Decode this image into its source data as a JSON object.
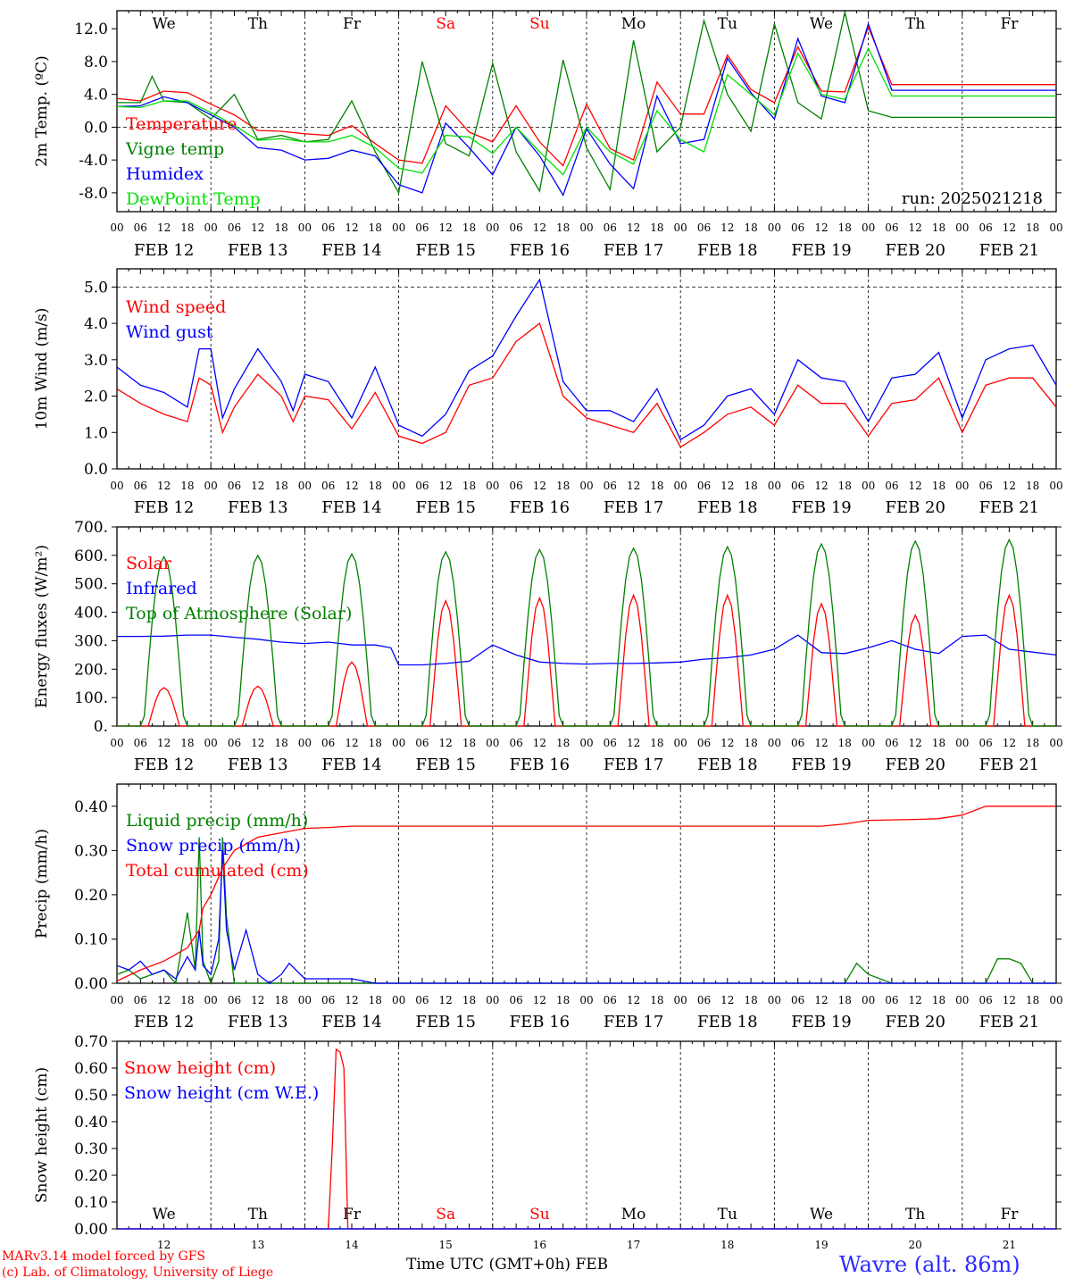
{
  "run_label": "run: 2025021218",
  "dates": [
    "FEB 12",
    "FEB 13",
    "FEB 14",
    "FEB 15",
    "FEB 16",
    "FEB 17",
    "FEB 18",
    "FEB 19",
    "FEB 20",
    "FEB 21"
  ],
  "hour_labels": [
    "00",
    "06",
    "12",
    "18"
  ],
  "weekdays": [
    {
      "label": "We",
      "color": "#000000"
    },
    {
      "label": "Th",
      "color": "#000000"
    },
    {
      "label": "Fr",
      "color": "#000000"
    },
    {
      "label": "Sa",
      "color": "#ff0000"
    },
    {
      "label": "Su",
      "color": "#ff0000"
    },
    {
      "label": "Mo",
      "color": "#000000"
    },
    {
      "label": "Tu",
      "color": "#000000"
    },
    {
      "label": "We",
      "color": "#000000"
    },
    {
      "label": "Th",
      "color": "#000000"
    },
    {
      "label": "Fr",
      "color": "#000000"
    }
  ],
  "bottom_day_numbers": [
    "12",
    "13",
    "14",
    "15",
    "16",
    "17",
    "18",
    "19",
    "20",
    "21"
  ],
  "x_axis_title": "Time UTC (GMT+0h)",
  "x_axis_month": "FEB",
  "footer": {
    "line1": "MARv3.14 model forced by GFS",
    "line2": "(c) Lab. of Climatology, University of Liege"
  },
  "station": "Wavre (alt. 86m)",
  "colors": {
    "red": "#ff0000",
    "green": "#008000",
    "blue": "#0000ff",
    "lightgreen": "#00e000"
  },
  "chart_data": [
    {
      "type": "line",
      "ylabel": "2m Temp. (ºC)",
      "ylim": [
        -10.3,
        14.2
      ],
      "yticks": [
        "-8.0",
        "-4.0",
        "0.0",
        "4.0",
        "8.0",
        "12.0"
      ],
      "ytick_values": [
        -8,
        -4,
        0,
        4,
        8,
        12
      ],
      "dashed_lines": [
        0
      ],
      "x_unit": "hours since FEB 12 00 UTC",
      "series": [
        {
          "name": "Temperature",
          "color": "#ff0000",
          "x": [
            0,
            6,
            12,
            18,
            24,
            30,
            36,
            42,
            48,
            54,
            60,
            66,
            72,
            78,
            84,
            90,
            96,
            102,
            108,
            114,
            120,
            126,
            132,
            138,
            144,
            150,
            156,
            162,
            168,
            174,
            180,
            186,
            192,
            198,
            204,
            210,
            216,
            222,
            228,
            234,
            240
          ],
          "y": [
            3.5,
            3.2,
            4.4,
            4.2,
            2.8,
            1.5,
            -0.4,
            -0.5,
            -0.8,
            -1.0,
            0.2,
            -2.0,
            -4.0,
            -4.4,
            2.6,
            -0.6,
            -1.8,
            2.6,
            -1.8,
            -4.7,
            2.8,
            -2.6,
            -4.0,
            5.5,
            1.6,
            1.6,
            8.8,
            4.6,
            3.0,
            9.8,
            4.4,
            4.3,
            12.2,
            5.2,
            5.2,
            5.2,
            5.2,
            5.2,
            5.2,
            5.2,
            5.2
          ]
        },
        {
          "name": "Vigne temp",
          "color": "#008000",
          "x": [
            0,
            6,
            9,
            12,
            18,
            24,
            30,
            36,
            42,
            48,
            54,
            60,
            66,
            72,
            78,
            84,
            90,
            96,
            102,
            108,
            114,
            120,
            126,
            132,
            138,
            144,
            150,
            156,
            162,
            168,
            174,
            180,
            186,
            192,
            198,
            204,
            210,
            216,
            222,
            228,
            234,
            240
          ],
          "y": [
            3.0,
            3.0,
            6.2,
            3.2,
            3.0,
            1.0,
            4.0,
            -1.5,
            -1.0,
            -1.8,
            -1.5,
            3.2,
            -3.0,
            -8.0,
            8.0,
            -2.0,
            -3.5,
            7.8,
            -3.0,
            -7.8,
            8.2,
            -2.5,
            -7.6,
            10.6,
            -3.0,
            0.0,
            13.0,
            4.0,
            -0.5,
            12.6,
            3.0,
            1.0,
            14.0,
            2.0,
            1.2,
            1.2,
            1.2,
            1.2,
            1.2,
            1.2,
            1.2,
            1.2
          ]
        },
        {
          "name": "Humidex",
          "color": "#0000ff",
          "x": [
            0,
            6,
            12,
            18,
            24,
            30,
            36,
            42,
            48,
            54,
            60,
            66,
            72,
            78,
            84,
            90,
            96,
            102,
            108,
            114,
            120,
            126,
            132,
            138,
            144,
            150,
            156,
            162,
            168,
            174,
            180,
            186,
            192,
            198,
            204,
            210,
            216,
            222,
            228,
            234,
            240
          ],
          "y": [
            2.5,
            2.6,
            3.7,
            3.0,
            1.5,
            0.0,
            -2.5,
            -2.8,
            -4.0,
            -3.8,
            -2.8,
            -3.5,
            -7.0,
            -8.0,
            0.5,
            -2.5,
            -5.8,
            0.0,
            -3.5,
            -8.3,
            -0.2,
            -4.5,
            -7.5,
            3.8,
            -2.0,
            -1.5,
            8.4,
            4.2,
            1.0,
            10.8,
            3.8,
            3.0,
            12.6,
            4.5,
            4.5,
            4.5,
            4.5,
            4.5,
            4.5,
            4.5,
            4.5
          ]
        },
        {
          "name": "DewPoint Temp",
          "color": "#00e000",
          "x": [
            0,
            6,
            12,
            18,
            24,
            30,
            36,
            42,
            48,
            54,
            60,
            66,
            72,
            78,
            84,
            90,
            96,
            102,
            108,
            114,
            120,
            126,
            132,
            138,
            144,
            150,
            156,
            162,
            168,
            174,
            180,
            186,
            192,
            198,
            204,
            210,
            216,
            222,
            228,
            234,
            240
          ],
          "y": [
            2.5,
            2.4,
            3.2,
            3.2,
            1.8,
            0.2,
            -1.6,
            -1.4,
            -1.8,
            -1.8,
            -1.0,
            -2.5,
            -5.0,
            -5.6,
            -1.0,
            -1.2,
            -3.2,
            0.0,
            -3.0,
            -5.8,
            0.0,
            -3.0,
            -4.5,
            2.0,
            -1.5,
            -3.0,
            6.4,
            4.0,
            1.5,
            9.0,
            4.0,
            3.4,
            9.6,
            3.8,
            3.8,
            3.8,
            3.8,
            3.8,
            3.8,
            3.8,
            3.8
          ]
        }
      ]
    },
    {
      "type": "line",
      "ylabel": "10m Wind (m/s)",
      "ylim": [
        0,
        5.5
      ],
      "yticks": [
        "0.0",
        "1.0",
        "2.0",
        "3.0",
        "4.0",
        "5.0"
      ],
      "ytick_values": [
        0,
        1,
        2,
        3,
        4,
        5
      ],
      "dashed_lines": [
        5
      ],
      "series": [
        {
          "name": "Wind speed",
          "color": "#ff0000",
          "x": [
            0,
            6,
            12,
            18,
            21,
            24,
            27,
            30,
            36,
            42,
            45,
            48,
            54,
            60,
            66,
            72,
            78,
            84,
            90,
            96,
            102,
            108,
            114,
            120,
            126,
            132,
            138,
            144,
            150,
            156,
            162,
            168,
            174,
            180,
            186,
            192,
            198,
            204,
            210,
            216,
            222,
            228,
            234,
            240
          ],
          "y": [
            2.2,
            1.8,
            1.5,
            1.3,
            2.5,
            2.3,
            1.0,
            1.7,
            2.6,
            2.0,
            1.3,
            2.0,
            1.9,
            1.1,
            2.1,
            0.9,
            0.7,
            1.0,
            2.3,
            2.5,
            3.5,
            4.0,
            2.0,
            1.4,
            1.2,
            1.0,
            1.8,
            0.6,
            1.0,
            1.5,
            1.7,
            1.2,
            2.3,
            1.8,
            1.8,
            0.9,
            1.8,
            1.9,
            2.5,
            1.0,
            2.3,
            2.5,
            2.5,
            1.7
          ]
        },
        {
          "name": "Wind gust",
          "color": "#0000ff",
          "x": [
            0,
            6,
            12,
            18,
            21,
            24,
            27,
            30,
            36,
            42,
            45,
            48,
            54,
            60,
            66,
            72,
            78,
            84,
            90,
            96,
            102,
            108,
            114,
            120,
            126,
            132,
            138,
            144,
            150,
            156,
            162,
            168,
            174,
            180,
            186,
            192,
            198,
            204,
            210,
            216,
            222,
            228,
            234,
            240
          ],
          "y": [
            2.8,
            2.3,
            2.1,
            1.7,
            3.3,
            3.3,
            1.4,
            2.2,
            3.3,
            2.4,
            1.6,
            2.6,
            2.4,
            1.4,
            2.8,
            1.2,
            0.9,
            1.5,
            2.7,
            3.1,
            4.2,
            5.2,
            2.4,
            1.6,
            1.6,
            1.3,
            2.2,
            0.8,
            1.2,
            2.0,
            2.2,
            1.5,
            3.0,
            2.5,
            2.4,
            1.3,
            2.5,
            2.6,
            3.2,
            1.4,
            3.0,
            3.3,
            3.4,
            2.3
          ]
        }
      ]
    },
    {
      "type": "line",
      "ylabel": "Energy fluxes (W/m²)",
      "ylim": [
        0,
        700
      ],
      "yticks": [
        "0.",
        "100.",
        "200.",
        "300.",
        "400.",
        "500.",
        "600.",
        "700."
      ],
      "ytick_values": [
        0,
        100,
        200,
        300,
        400,
        500,
        600,
        700
      ],
      "dashed_lines": [],
      "series": [
        {
          "name": "Solar",
          "color": "#ff0000",
          "peaks": [
            135,
            140,
            225,
            440,
            450,
            460,
            460,
            430,
            390,
            460
          ]
        },
        {
          "name": "Infrared",
          "color": "#0000ff",
          "x": [
            0,
            6,
            12,
            18,
            24,
            30,
            36,
            42,
            48,
            54,
            60,
            66,
            70,
            72,
            78,
            84,
            90,
            96,
            102,
            108,
            114,
            120,
            126,
            132,
            138,
            144,
            150,
            156,
            162,
            168,
            174,
            180,
            186,
            192,
            198,
            204,
            210,
            216,
            222,
            228,
            234,
            240
          ],
          "y": [
            315,
            315,
            316,
            320,
            320,
            312,
            305,
            295,
            290,
            295,
            285,
            285,
            275,
            215,
            215,
            220,
            228,
            285,
            250,
            225,
            220,
            218,
            220,
            220,
            222,
            225,
            235,
            240,
            250,
            270,
            320,
            258,
            255,
            275,
            300,
            270,
            255,
            315,
            320,
            270,
            260,
            250
          ]
        },
        {
          "name": "Top of Atmosphere (Solar)",
          "color": "#008000",
          "peaks": [
            595,
            600,
            605,
            612,
            620,
            625,
            630,
            640,
            650,
            655
          ]
        }
      ]
    },
    {
      "type": "line",
      "ylabel": "Precip (mm/h)",
      "ylim": [
        0,
        0.45
      ],
      "yticks": [
        "0.00",
        "0.10",
        "0.20",
        "0.30",
        "0.40"
      ],
      "ytick_values": [
        0,
        0.1,
        0.2,
        0.3,
        0.4
      ],
      "dashed_lines": [],
      "series": [
        {
          "name": "Liquid precip (mm/h)",
          "color": "#008000",
          "x": [
            0,
            3,
            6,
            9,
            12,
            15,
            18,
            20,
            21,
            22,
            24,
            26,
            27,
            28,
            30,
            33,
            36,
            48,
            60,
            72,
            84,
            96,
            108,
            120,
            132,
            144,
            156,
            180,
            186,
            189,
            192,
            198,
            210,
            216,
            222,
            225,
            228,
            231,
            234,
            240
          ],
          "y": [
            0.02,
            0.03,
            0.01,
            0.02,
            0.03,
            0.0,
            0.16,
            0.03,
            0.33,
            0.05,
            0.0,
            0.05,
            0.33,
            0.15,
            0.0,
            0.0,
            0.0,
            0.0,
            0.0,
            0.0,
            0.0,
            0.0,
            0.0,
            0.0,
            0.0,
            0.0,
            0.0,
            0.0,
            0.0,
            0.045,
            0.02,
            0.0,
            0.0,
            0.0,
            0.0,
            0.055,
            0.055,
            0.045,
            0.0,
            0.0
          ]
        },
        {
          "name": "Snow precip (mm/h)",
          "color": "#0000ff",
          "x": [
            0,
            3,
            6,
            9,
            12,
            15,
            18,
            20,
            21,
            22,
            24,
            26,
            27,
            28,
            30,
            33,
            36,
            39,
            42,
            44,
            48,
            54,
            60,
            63,
            66,
            72,
            84,
            96,
            108,
            120,
            132,
            144,
            156,
            180,
            192,
            204,
            216,
            228,
            240
          ],
          "y": [
            0.04,
            0.03,
            0.05,
            0.02,
            0.03,
            0.01,
            0.06,
            0.03,
            0.12,
            0.04,
            0.02,
            0.1,
            0.3,
            0.12,
            0.03,
            0.12,
            0.02,
            0.0,
            0.02,
            0.045,
            0.01,
            0.01,
            0.01,
            0.005,
            0.0,
            0.0,
            0.0,
            0.0,
            0.0,
            0.0,
            0.0,
            0.0,
            0.0,
            0.0,
            0.0,
            0.0,
            0.0,
            0.0,
            0.0
          ]
        },
        {
          "name": "Total cumulated (cm)",
          "color": "#ff0000",
          "x": [
            0,
            6,
            12,
            18,
            21,
            22,
            24,
            27,
            30,
            36,
            42,
            48,
            54,
            60,
            72,
            108,
            144,
            180,
            186,
            192,
            204,
            210,
            216,
            222,
            240
          ],
          "y": [
            0.005,
            0.03,
            0.05,
            0.08,
            0.12,
            0.17,
            0.2,
            0.26,
            0.3,
            0.33,
            0.34,
            0.35,
            0.352,
            0.355,
            0.355,
            0.355,
            0.355,
            0.355,
            0.36,
            0.368,
            0.37,
            0.372,
            0.38,
            0.4,
            0.4
          ]
        }
      ]
    },
    {
      "type": "line",
      "ylabel": "Snow height (cm)",
      "ylim": [
        0,
        0.7
      ],
      "yticks": [
        "0.00",
        "0.10",
        "0.20",
        "0.30",
        "0.40",
        "0.50",
        "0.60",
        "0.70"
      ],
      "ytick_values": [
        0,
        0.1,
        0.2,
        0.3,
        0.4,
        0.5,
        0.6,
        0.7
      ],
      "dashed_lines": [],
      "series": [
        {
          "name": "Snow height (cm)",
          "color": "#ff0000",
          "x": [
            0,
            54,
            55,
            56,
            57,
            58,
            59,
            240
          ],
          "y": [
            0,
            0,
            0.3,
            0.67,
            0.66,
            0.6,
            0,
            0
          ]
        },
        {
          "name": "Snow height (cm W.E.)",
          "color": "#0000ff",
          "x": [
            0,
            240
          ],
          "y": [
            0,
            0
          ]
        }
      ]
    }
  ]
}
